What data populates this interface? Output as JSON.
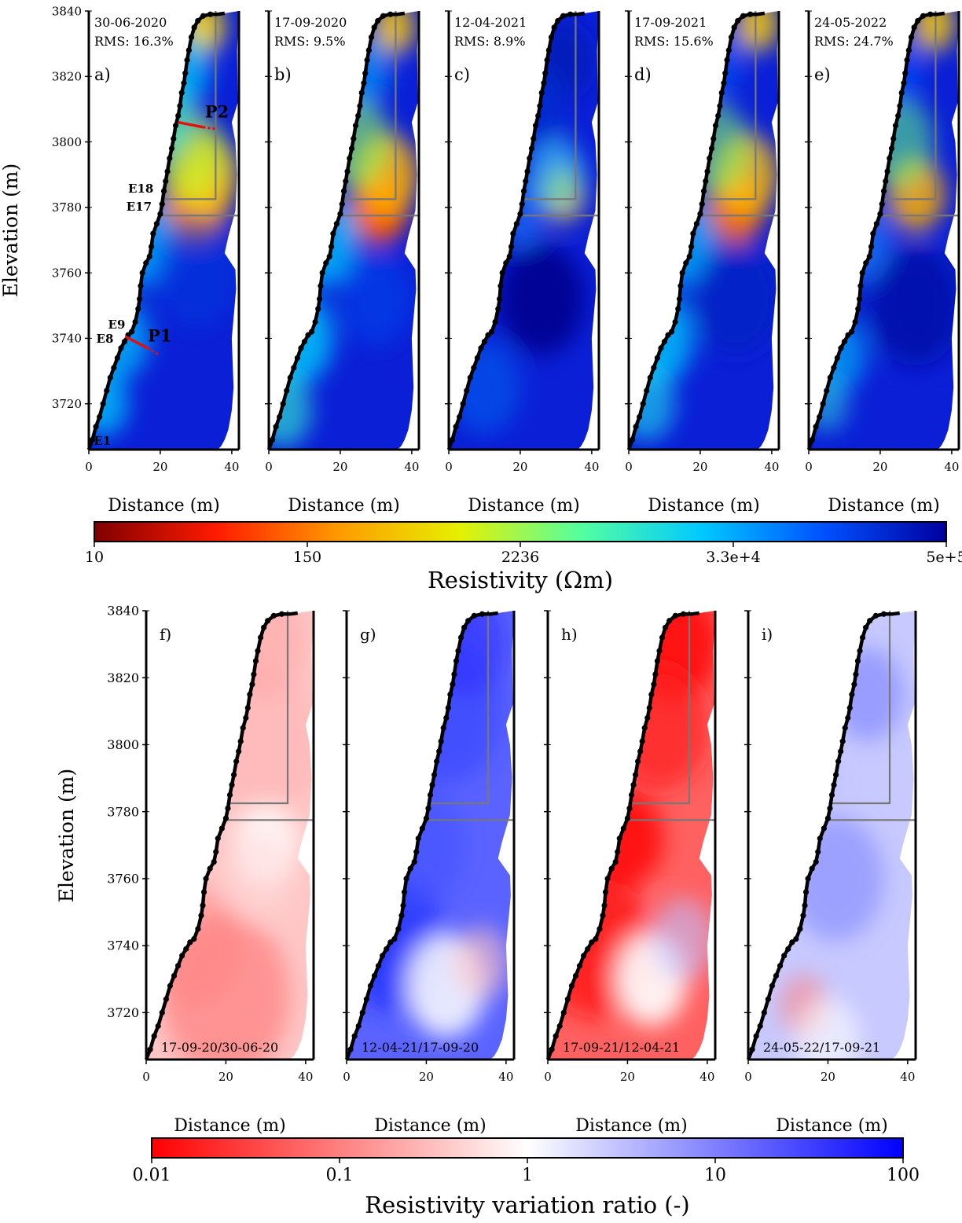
{
  "figure": {
    "top_ylabel": "Elevation (m)",
    "bottom_ylabel": "Elevation (m)",
    "xlabel": "Distance (m)",
    "top_colorbar": {
      "label": "Resistivity (Ωm)",
      "ticks": [
        "10",
        "150",
        "2236",
        "3.3e+4",
        "5e+5"
      ],
      "colors": [
        "#7f0000",
        "#ff1a00",
        "#ff9900",
        "#e6f000",
        "#54ffa0",
        "#00c8ff",
        "#0050ff",
        "#00009f"
      ]
    },
    "bottom_colorbar": {
      "label": "Resistivity variation ratio (-)",
      "ticks": [
        "0.01",
        "0.1",
        "1",
        "10",
        "100"
      ],
      "colors": [
        "#ff0000",
        "#ffffff",
        "#0000ff"
      ]
    }
  },
  "chart_data": [
    {
      "type": "heatmap",
      "panel": "a)",
      "date": "30-06-2020",
      "rms": "RMS: 16.3%",
      "xlabel": "Distance (m)",
      "ylabel": "Elevation (m)",
      "xlim": [
        0,
        42
      ],
      "ylim": [
        3706,
        3840
      ],
      "xticks": [
        "0",
        "20",
        "40"
      ],
      "yticks": [
        "3720",
        "3740",
        "3760",
        "3780",
        "3800",
        "3820",
        "3840"
      ],
      "scale": "resistivity",
      "annotations": {
        "P1": "P1",
        "P2": "P2",
        "E1": "E1",
        "E8": "E8",
        "E9": "E9",
        "E17": "E17",
        "E18": "E18"
      }
    },
    {
      "type": "heatmap",
      "panel": "b)",
      "date": "17-09-2020",
      "rms": "RMS: 9.5%",
      "xlabel": "Distance (m)",
      "xlim": [
        0,
        42
      ],
      "ylim": [
        3706,
        3840
      ],
      "xticks": [
        "0",
        "20",
        "40"
      ],
      "scale": "resistivity"
    },
    {
      "type": "heatmap",
      "panel": "c)",
      "date": "12-04-2021",
      "rms": "RMS: 8.9%",
      "xlabel": "Distance (m)",
      "xlim": [
        0,
        42
      ],
      "ylim": [
        3706,
        3840
      ],
      "xticks": [
        "0",
        "20",
        "40"
      ],
      "scale": "resistivity"
    },
    {
      "type": "heatmap",
      "panel": "d)",
      "date": "17-09-2021",
      "rms": "RMS: 15.6%",
      "xlabel": "Distance (m)",
      "xlim": [
        0,
        42
      ],
      "ylim": [
        3706,
        3840
      ],
      "xticks": [
        "0",
        "20",
        "40"
      ],
      "scale": "resistivity"
    },
    {
      "type": "heatmap",
      "panel": "e)",
      "date": "24-05-2022",
      "rms": "RMS: 24.7%",
      "xlabel": "Distance (m)",
      "xlim": [
        0,
        42
      ],
      "ylim": [
        3706,
        3840
      ],
      "xticks": [
        "0",
        "20",
        "40"
      ],
      "scale": "resistivity"
    },
    {
      "type": "heatmap",
      "panel": "f)",
      "ratio": "17-09-20/30-06-20",
      "xlabel": "Distance (m)",
      "ylabel": "Elevation (m)",
      "xlim": [
        0,
        42
      ],
      "ylim": [
        3706,
        3840
      ],
      "xticks": [
        "0",
        "20",
        "40"
      ],
      "yticks": [
        "3720",
        "3740",
        "3760",
        "3780",
        "3800",
        "3820",
        "3840"
      ],
      "scale": "ratio"
    },
    {
      "type": "heatmap",
      "panel": "g)",
      "ratio": "12-04-21/17-09-20",
      "xlabel": "Distance (m)",
      "xlim": [
        0,
        42
      ],
      "ylim": [
        3706,
        3840
      ],
      "xticks": [
        "0",
        "20",
        "40"
      ],
      "scale": "ratio"
    },
    {
      "type": "heatmap",
      "panel": "h)",
      "ratio": "17-09-21/12-04-21",
      "xlabel": "Distance (m)",
      "xlim": [
        0,
        42
      ],
      "ylim": [
        3706,
        3840
      ],
      "xticks": [
        "0",
        "20",
        "40"
      ],
      "scale": "ratio"
    },
    {
      "type": "heatmap",
      "panel": "i)",
      "ratio": "24-05-22/17-09-21",
      "xlabel": "Distance (m)",
      "xlim": [
        0,
        42
      ],
      "ylim": [
        3706,
        3840
      ],
      "xticks": [
        "0",
        "20",
        "40"
      ],
      "scale": "ratio"
    }
  ]
}
